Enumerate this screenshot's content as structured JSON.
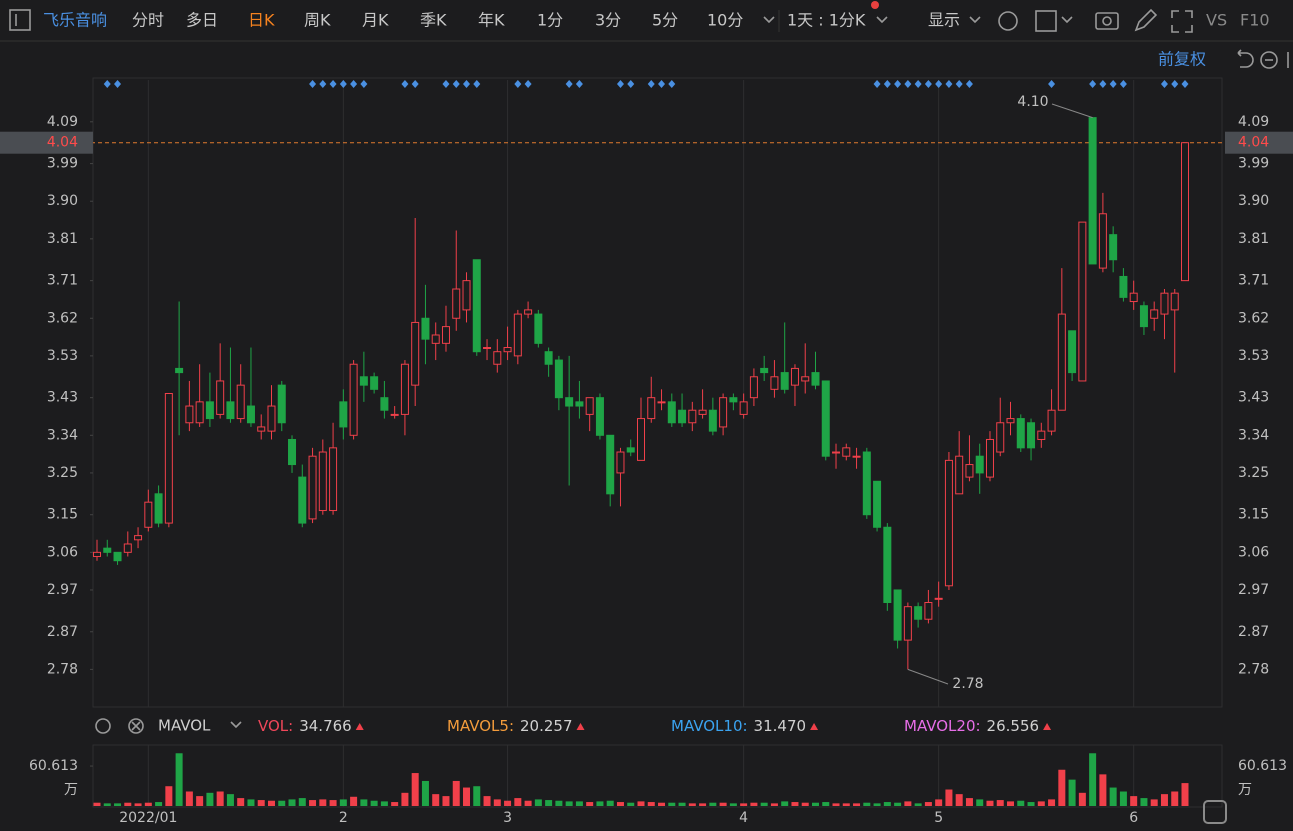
{
  "toolbar": {
    "stock": "飞乐音响",
    "periods": [
      "分时",
      "多日",
      "日K",
      "周K",
      "月K",
      "季K",
      "年K",
      "1分",
      "3分",
      "5分",
      "10分"
    ],
    "active_period": 2,
    "interval": "1天 : 1分K",
    "display": "显示",
    "vs": "VS",
    "f10": "F10",
    "adjust": "前复权"
  },
  "indicator_bar": {
    "name": "MAVOL",
    "items": [
      {
        "name": "VOL:",
        "value": 34.766,
        "color": "#f0475a"
      },
      {
        "name": "MAVOL5:",
        "value": 20.257,
        "color": "#f39c3c"
      },
      {
        "name": "MAVOL10:",
        "value": 31.47,
        "value_label": "31.470",
        "color": "#3ba3f0"
      },
      {
        "name": "MAVOL20:",
        "value": 26.556,
        "color": "#e76ee8"
      }
    ]
  },
  "chart_data": {
    "type": "candlestick",
    "categories": [
      null,
      null,
      null,
      null,
      null,
      "2022/01",
      null,
      null,
      null,
      null,
      null,
      null,
      null,
      null,
      null,
      null,
      null,
      null,
      null,
      null,
      null,
      null,
      null,
      null,
      "2",
      null,
      null,
      null,
      null,
      null,
      null,
      null,
      null,
      null,
      null,
      null,
      null,
      null,
      null,
      null,
      "3",
      null,
      null,
      null,
      null,
      null,
      null,
      null,
      null,
      null,
      null,
      null,
      null,
      null,
      null,
      null,
      null,
      null,
      null,
      null,
      null,
      null,
      null,
      "4",
      null,
      null,
      null,
      null,
      null,
      null,
      null,
      null,
      null,
      null,
      null,
      null,
      null,
      null,
      null,
      null,
      null,
      null,
      "5",
      null,
      null,
      null,
      null,
      null,
      null,
      null,
      null,
      null,
      null,
      null,
      null,
      null,
      null,
      null,
      null,
      null,
      null,
      "6",
      null,
      null,
      null,
      null,
      null
    ],
    "open": [
      3.05,
      3.07,
      3.06,
      3.06,
      3.09,
      3.12,
      3.2,
      3.13,
      3.5,
      3.37,
      3.37,
      3.42,
      3.39,
      3.42,
      3.38,
      3.41,
      3.35,
      3.35,
      3.46,
      3.33,
      3.24,
      3.14,
      3.16,
      3.16,
      3.42,
      3.34,
      3.48,
      3.48,
      3.43,
      3.39,
      3.39,
      3.46,
      3.62,
      3.56,
      3.56,
      3.62,
      3.64,
      3.76,
      3.55,
      3.51,
      3.54,
      3.53,
      3.63,
      3.63,
      3.54,
      3.52,
      3.43,
      3.42,
      3.39,
      3.43,
      3.34,
      3.25,
      3.31,
      3.28,
      3.38,
      3.42,
      3.42,
      3.4,
      3.37,
      3.39,
      3.4,
      3.36,
      3.43,
      3.39,
      3.43,
      3.5,
      3.45,
      3.49,
      3.46,
      3.47,
      3.49,
      3.47,
      3.3,
      3.29,
      3.29,
      3.3,
      3.23,
      3.12,
      2.97,
      2.85,
      2.93,
      2.9,
      2.95,
      2.98,
      3.2,
      3.24,
      3.29,
      3.24,
      3.3,
      3.37,
      3.38,
      3.37,
      3.33,
      3.35,
      3.4,
      3.59,
      3.47,
      4.1,
      3.74,
      3.82,
      3.72,
      3.66,
      3.65,
      3.62,
      3.63,
      3.64,
      3.71
    ],
    "high": [
      3.09,
      3.09,
      3.06,
      3.11,
      3.12,
      3.21,
      3.22,
      3.44,
      3.66,
      3.47,
      3.51,
      3.49,
      3.56,
      3.55,
      3.51,
      3.55,
      3.39,
      3.46,
      3.47,
      3.34,
      3.27,
      3.31,
      3.33,
      3.37,
      3.45,
      3.52,
      3.54,
      3.49,
      3.47,
      3.41,
      3.52,
      3.86,
      3.7,
      3.61,
      3.65,
      3.83,
      3.73,
      3.76,
      3.57,
      3.57,
      3.6,
      3.64,
      3.66,
      3.64,
      3.55,
      3.53,
      3.53,
      3.47,
      3.43,
      3.44,
      3.34,
      3.31,
      3.33,
      3.43,
      3.48,
      3.45,
      3.44,
      3.44,
      3.42,
      3.45,
      3.43,
      3.44,
      3.44,
      3.44,
      3.5,
      3.53,
      3.52,
      3.61,
      3.51,
      3.56,
      3.54,
      3.47,
      3.32,
      3.32,
      3.31,
      3.31,
      3.23,
      3.13,
      2.97,
      2.94,
      2.94,
      2.97,
      2.99,
      3.3,
      3.35,
      3.34,
      3.32,
      3.35,
      3.43,
      3.42,
      3.39,
      3.38,
      3.37,
      3.45,
      3.74,
      3.59,
      3.85,
      4.1,
      3.92,
      3.84,
      3.74,
      3.71,
      3.66,
      3.66,
      3.69,
      3.69,
      4.04
    ],
    "low": [
      3.04,
      3.05,
      3.03,
      3.05,
      3.07,
      3.11,
      3.12,
      3.12,
      3.34,
      3.35,
      3.36,
      3.36,
      3.38,
      3.37,
      3.37,
      3.36,
      3.33,
      3.33,
      3.35,
      3.25,
      3.12,
      3.13,
      3.15,
      3.15,
      3.33,
      3.33,
      3.42,
      3.44,
      3.38,
      3.38,
      3.34,
      3.41,
      3.51,
      3.52,
      3.54,
      3.59,
      3.61,
      3.53,
      3.52,
      3.49,
      3.52,
      3.51,
      3.62,
      3.55,
      3.48,
      3.4,
      3.22,
      3.38,
      3.35,
      3.33,
      3.17,
      3.17,
      3.29,
      3.28,
      3.37,
      3.4,
      3.36,
      3.36,
      3.35,
      3.38,
      3.34,
      3.34,
      3.4,
      3.38,
      3.41,
      3.47,
      3.43,
      3.44,
      3.41,
      3.44,
      3.45,
      3.28,
      3.26,
      3.28,
      3.26,
      3.14,
      3.11,
      2.92,
      2.83,
      2.78,
      2.88,
      2.89,
      2.93,
      2.97,
      3.2,
      3.23,
      3.2,
      3.23,
      3.29,
      3.34,
      3.3,
      3.28,
      3.31,
      3.34,
      3.4,
      3.47,
      3.47,
      3.75,
      3.73,
      3.73,
      3.66,
      3.64,
      3.58,
      3.59,
      3.57,
      3.49,
      3.71
    ],
    "close": [
      3.06,
      3.06,
      3.04,
      3.08,
      3.1,
      3.18,
      3.13,
      3.44,
      3.49,
      3.41,
      3.42,
      3.38,
      3.47,
      3.38,
      3.46,
      3.37,
      3.36,
      3.41,
      3.37,
      3.27,
      3.13,
      3.29,
      3.3,
      3.31,
      3.36,
      3.51,
      3.46,
      3.45,
      3.4,
      3.39,
      3.51,
      3.61,
      3.57,
      3.58,
      3.6,
      3.69,
      3.71,
      3.54,
      3.55,
      3.54,
      3.55,
      3.63,
      3.64,
      3.56,
      3.51,
      3.43,
      3.41,
      3.41,
      3.43,
      3.34,
      3.2,
      3.3,
      3.3,
      3.38,
      3.43,
      3.42,
      3.37,
      3.37,
      3.4,
      3.4,
      3.35,
      3.43,
      3.42,
      3.42,
      3.48,
      3.49,
      3.48,
      3.45,
      3.5,
      3.48,
      3.46,
      3.29,
      3.3,
      3.31,
      3.29,
      3.15,
      3.12,
      2.94,
      2.85,
      2.93,
      2.9,
      2.94,
      2.95,
      3.28,
      3.29,
      3.27,
      3.25,
      3.33,
      3.37,
      3.38,
      3.31,
      3.31,
      3.35,
      3.4,
      3.63,
      3.49,
      3.85,
      3.75,
      3.87,
      3.76,
      3.67,
      3.68,
      3.6,
      3.64,
      3.68,
      3.68,
      4.04
    ],
    "volume": [
      5,
      4,
      4,
      5,
      4,
      5,
      6,
      30,
      80,
      22,
      15,
      20,
      22,
      18,
      12,
      10,
      9,
      8,
      8,
      10,
      12,
      9,
      10,
      9,
      10,
      14,
      10,
      8,
      7,
      6,
      20,
      50,
      38,
      18,
      15,
      38,
      28,
      30,
      15,
      10,
      8,
      12,
      8,
      10,
      9,
      8,
      7,
      7,
      6,
      7,
      8,
      6,
      5,
      7,
      6,
      5,
      5,
      5,
      4,
      4,
      5,
      5,
      4,
      4,
      5,
      5,
      4,
      7,
      6,
      5,
      5,
      6,
      4,
      4,
      4,
      5,
      4,
      6,
      5,
      7,
      4,
      6,
      10,
      25,
      18,
      12,
      10,
      8,
      9,
      7,
      8,
      6,
      7,
      10,
      55,
      40,
      20,
      80,
      48,
      28,
      22,
      15,
      12,
      10,
      18,
      22,
      34.766
    ],
    "up_color": "#f0404a",
    "down_color": "#1fa547",
    "ylim": [
      2.69,
      4.19
    ],
    "yticks": [
      4.09,
      3.99,
      {
        "value": 3.9,
        "label": "3.90"
      },
      3.81,
      3.71,
      3.62,
      3.53,
      3.43,
      3.34,
      3.25,
      3.15,
      3.06,
      2.97,
      2.87,
      2.78
    ],
    "last_price": 4.04,
    "max_label": "4.10",
    "min_label": "2.78",
    "volume_ylim": [
      0,
      88
    ],
    "volume_yticks": [
      60.613
    ],
    "volume_unit": "万"
  }
}
